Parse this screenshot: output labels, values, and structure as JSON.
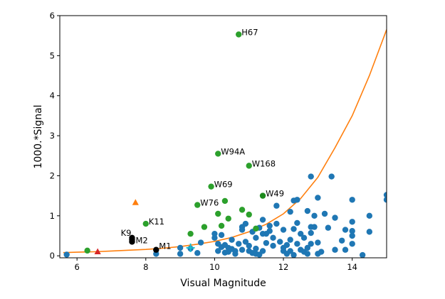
{
  "chart_data": {
    "type": "scatter",
    "title": "",
    "xlabel": "Visual Magnitude",
    "ylabel": "1000.*Signal",
    "xlim": [
      5.5,
      15.0
    ],
    "ylim": [
      -0.05,
      6.0
    ],
    "xticks": [
      "6",
      "8",
      "10",
      "12",
      "14"
    ],
    "yticks": [
      "0",
      "1",
      "2",
      "3",
      "4",
      "5",
      "6"
    ],
    "grid": false,
    "colors": {
      "blue": "#1f77b4",
      "green": "#2ca02c",
      "black": "#000000",
      "orange": "#ff7f0e",
      "red": "#d62728",
      "cyan": "#17becf",
      "curve": "#ff7f0e"
    },
    "curve": {
      "x": [
        5.6,
        6.0,
        6.5,
        7.0,
        7.5,
        8.0,
        8.5,
        9.0,
        9.5,
        10.0,
        10.5,
        11.0,
        11.5,
        12.0,
        12.5,
        13.0,
        13.5,
        14.0,
        14.5,
        15.0
      ],
      "y": [
        0.08,
        0.09,
        0.1,
        0.12,
        0.14,
        0.16,
        0.19,
        0.23,
        0.29,
        0.36,
        0.46,
        0.6,
        0.79,
        1.05,
        1.43,
        1.96,
        2.7,
        3.5,
        4.5,
        5.65
      ]
    },
    "series": [
      {
        "marker": "circle",
        "color": "blue",
        "points": [
          [
            5.7,
            0.03
          ],
          [
            8.3,
            0.05
          ],
          [
            9.0,
            0.2
          ],
          [
            9.0,
            0.05
          ],
          [
            9.3,
            0.18
          ],
          [
            9.5,
            0.07
          ],
          [
            9.6,
            0.33
          ],
          [
            10.0,
            0.55
          ],
          [
            10.0,
            0.45
          ],
          [
            10.1,
            0.3
          ],
          [
            10.1,
            0.12
          ],
          [
            10.2,
            0.52
          ],
          [
            10.2,
            0.22
          ],
          [
            10.3,
            0.27
          ],
          [
            10.3,
            0.08
          ],
          [
            10.4,
            0.2
          ],
          [
            10.4,
            0.1
          ],
          [
            10.5,
            0.17
          ],
          [
            10.5,
            0.4
          ],
          [
            10.6,
            0.12
          ],
          [
            10.6,
            0.05
          ],
          [
            10.7,
            0.3
          ],
          [
            10.8,
            0.72
          ],
          [
            10.8,
            0.15
          ],
          [
            10.8,
            0.65
          ],
          [
            10.9,
            0.8
          ],
          [
            10.9,
            0.35
          ],
          [
            11.0,
            0.25
          ],
          [
            11.0,
            0.12
          ],
          [
            11.1,
            0.6
          ],
          [
            11.1,
            0.07
          ],
          [
            11.2,
            0.45
          ],
          [
            11.2,
            0.18
          ],
          [
            11.2,
            0.05
          ],
          [
            11.3,
            0.7
          ],
          [
            11.3,
            0.03
          ],
          [
            11.4,
            0.9
          ],
          [
            11.4,
            0.55
          ],
          [
            11.4,
            0.12
          ],
          [
            11.5,
            0.32
          ],
          [
            11.5,
            0.55
          ],
          [
            11.6,
            0.62
          ],
          [
            11.6,
            0.75
          ],
          [
            11.7,
            0.45
          ],
          [
            11.7,
            0.25
          ],
          [
            11.8,
            0.8
          ],
          [
            11.8,
            1.25
          ],
          [
            11.9,
            0.35
          ],
          [
            12.0,
            0.12
          ],
          [
            12.0,
            0.65
          ],
          [
            12.0,
            0.2
          ],
          [
            12.1,
            0.27
          ],
          [
            12.1,
            0.05
          ],
          [
            12.2,
            0.4
          ],
          [
            12.2,
            0.12
          ],
          [
            12.2,
            1.1
          ],
          [
            12.3,
            0.67
          ],
          [
            12.3,
            0.02
          ],
          [
            12.3,
            1.38
          ],
          [
            12.4,
            0.82
          ],
          [
            12.4,
            1.4
          ],
          [
            12.4,
            0.3
          ],
          [
            12.5,
            0.55
          ],
          [
            12.5,
            0.15
          ],
          [
            12.6,
            0.1
          ],
          [
            12.6,
            0.45
          ],
          [
            12.7,
            0.05
          ],
          [
            12.7,
            0.2
          ],
          [
            12.8,
            0.57
          ],
          [
            12.8,
            0.72
          ],
          [
            12.8,
            0.3
          ],
          [
            12.7,
            1.12
          ],
          [
            12.8,
            1.98
          ],
          [
            12.9,
            1.0
          ],
          [
            12.9,
            0.72
          ],
          [
            13.0,
            0.33
          ],
          [
            13.0,
            1.45
          ],
          [
            13.0,
            0.05
          ],
          [
            13.1,
            0.1
          ],
          [
            13.2,
            1.05
          ],
          [
            13.3,
            0.7
          ],
          [
            13.4,
            1.98
          ],
          [
            13.5,
            0.95
          ],
          [
            13.5,
            0.15
          ],
          [
            13.7,
            0.38
          ],
          [
            13.8,
            0.65
          ],
          [
            13.8,
            0.15
          ],
          [
            14.0,
            0.85
          ],
          [
            14.0,
            0.62
          ],
          [
            14.0,
            0.5
          ],
          [
            14.0,
            0.3
          ],
          [
            14.0,
            1.4
          ],
          [
            14.3,
            0.02
          ],
          [
            14.5,
            1.0
          ],
          [
            14.5,
            0.6
          ],
          [
            15.0,
            1.52
          ],
          [
            15.0,
            1.4
          ]
        ]
      },
      {
        "marker": "circle",
        "color": "green",
        "points": [
          [
            6.3,
            0.13
          ],
          [
            8.0,
            0.8
          ],
          [
            9.3,
            0.55
          ],
          [
            9.5,
            1.27
          ],
          [
            9.7,
            0.72
          ],
          [
            9.9,
            1.73
          ],
          [
            10.1,
            2.55
          ],
          [
            10.1,
            1.05
          ],
          [
            10.2,
            0.75
          ],
          [
            10.3,
            1.37
          ],
          [
            10.4,
            0.93
          ],
          [
            10.7,
            5.53
          ],
          [
            10.8,
            1.15
          ],
          [
            11.0,
            2.25
          ],
          [
            11.0,
            1.03
          ],
          [
            11.2,
            0.68
          ]
        ]
      },
      {
        "marker": "circle",
        "color": "green_dark",
        "points": [
          [
            11.4,
            1.5
          ]
        ]
      },
      {
        "marker": "circle",
        "color": "black",
        "points": [
          [
            7.6,
            0.45
          ],
          [
            7.6,
            0.4
          ],
          [
            7.6,
            0.35
          ],
          [
            8.3,
            0.15
          ]
        ]
      },
      {
        "marker": "triangle",
        "color": "orange",
        "points": [
          [
            7.7,
            1.33
          ]
        ]
      },
      {
        "marker": "triangle",
        "color": "red",
        "points": [
          [
            6.6,
            0.1
          ]
        ]
      },
      {
        "marker": "plus",
        "color": "cyan",
        "points": [
          [
            9.3,
            0.2
          ]
        ]
      }
    ],
    "annotations": [
      {
        "text": "H67",
        "x": 10.7,
        "y": 5.53
      },
      {
        "text": "W94A",
        "x": 10.1,
        "y": 2.55
      },
      {
        "text": "W168",
        "x": 11.0,
        "y": 2.25
      },
      {
        "text": "W69",
        "x": 9.9,
        "y": 1.73
      },
      {
        "text": "W49",
        "x": 11.4,
        "y": 1.5
      },
      {
        "text": "W76",
        "x": 9.5,
        "y": 1.27
      },
      {
        "text": "K11",
        "x": 8.0,
        "y": 0.8
      },
      {
        "text": "K9",
        "x": 7.6,
        "y": 0.45
      },
      {
        "text": "M2",
        "x": 7.6,
        "y": 0.35
      },
      {
        "text": "M1",
        "x": 8.3,
        "y": 0.15
      }
    ]
  }
}
